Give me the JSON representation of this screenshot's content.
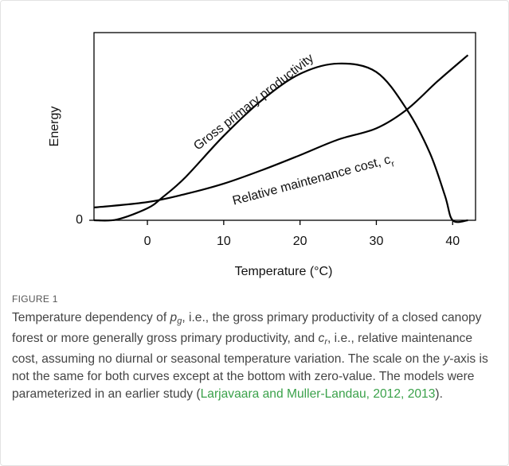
{
  "chart_data": {
    "type": "line",
    "xlabel": "Temperature (°C)",
    "ylabel": "Energy",
    "xlim": [
      -7,
      43
    ],
    "xticks": [
      0,
      10,
      20,
      30,
      40
    ],
    "ylim": [
      0,
      100
    ],
    "yticks": [
      0
    ],
    "frame": true,
    "series": [
      {
        "name": "Gross primary productivity",
        "color": "#000000",
        "x": [
          -7,
          -4,
          0,
          2,
          5,
          10,
          15,
          20,
          25,
          30,
          34,
          37,
          39,
          40,
          42
        ],
        "values": [
          0,
          0.4,
          6.4,
          12.3,
          23,
          45,
          64,
          78,
          83.5,
          79,
          59,
          36,
          13,
          0,
          0
        ],
        "label": [
          "Gross primary productivity"
        ]
      },
      {
        "name": "Relative maintenance cost, cr",
        "color": "#000000",
        "x": [
          -7,
          0,
          5,
          10,
          15,
          20,
          25,
          30,
          34,
          38,
          42
        ],
        "values": [
          6.8,
          9.7,
          14,
          19.5,
          26.7,
          34.7,
          43,
          49,
          59,
          74,
          88
        ],
        "label": [
          "Relative maintenance cost, c",
          "r"
        ]
      }
    ]
  },
  "caption": {
    "heading": "FIGURE 1",
    "segments": [
      {
        "text": "Temperature dependency of ",
        "style": "plain"
      },
      {
        "text": "p",
        "style": "italic"
      },
      {
        "text": "g",
        "style": "sub"
      },
      {
        "text": ", i.e., the gross primary productivity of a closed canopy forest or more generally gross primary productivity, and ",
        "style": "plain"
      },
      {
        "text": "c",
        "style": "italic"
      },
      {
        "text": "r",
        "style": "sub"
      },
      {
        "text": ", i.e., relative maintenance cost, assuming no diurnal or seasonal temperature variation. The scale on the ",
        "style": "plain"
      },
      {
        "text": "y",
        "style": "italic"
      },
      {
        "text": "-axis is not the same for both curves except at the bottom with zero-value. The models were parameterized in an earlier study (",
        "style": "plain"
      },
      {
        "text": "Larjavaara and Muller-Landau, 2012, 2013",
        "style": "link"
      },
      {
        "text": ").",
        "style": "plain"
      }
    ]
  }
}
